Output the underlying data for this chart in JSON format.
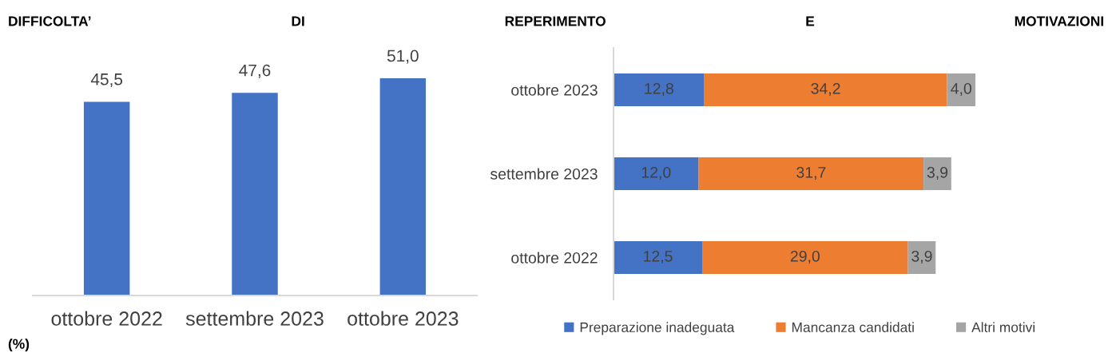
{
  "chart_data": [
    {
      "type": "bar",
      "title": "DIFFICOLTA’ DI REPERIMENTO E MOTIVAZIONI",
      "categories": [
        "ottobre 2022",
        "settembre 2023",
        "ottobre 2023"
      ],
      "values": [
        45.5,
        47.6,
        51.0
      ],
      "value_labels": [
        "45,5",
        "47,6",
        "51,0"
      ],
      "color": "#4472c4",
      "tick_labels": "x",
      "annotations": [
        "(%)"
      ]
    },
    {
      "type": "bar",
      "orientation": "horizontal",
      "stacked": true,
      "categories": [
        "ottobre 2023",
        "settembre 2023",
        "ottobre 2022"
      ],
      "series": [
        {
          "name": "Preparazione inadeguata",
          "color": "#4472c4",
          "values": [
            12.8,
            12.0,
            12.5
          ],
          "value_labels": [
            "12,8",
            "12,0",
            "12,5"
          ]
        },
        {
          "name": "Mancanza candidati",
          "color": "#ed7d31",
          "values": [
            34.2,
            31.7,
            29.0
          ],
          "value_labels": [
            "34,2",
            "31,7",
            "29,0"
          ]
        },
        {
          "name": "Altri motivi",
          "color": "#a5a5a5",
          "values": [
            4.0,
            3.9,
            3.9
          ],
          "value_labels": [
            "4,0",
            "3,9",
            "3,9"
          ]
        }
      ],
      "tick_labels": "y",
      "legend": "bottom"
    }
  ]
}
